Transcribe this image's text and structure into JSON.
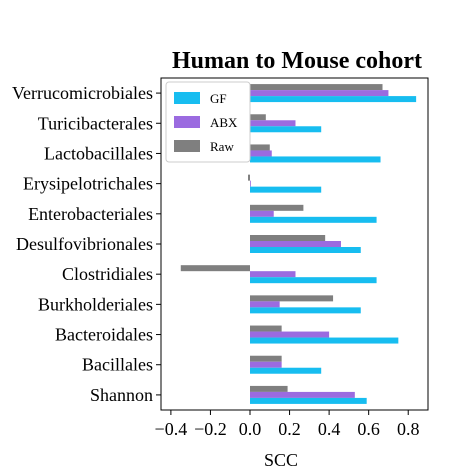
{
  "chart_data": {
    "type": "bar",
    "orientation": "horizontal",
    "title": "Human to Mouse cohort",
    "xlabel": "SCC",
    "ylabel": "",
    "xlim": [
      -0.45,
      0.9
    ],
    "xticks": [
      -0.4,
      -0.2,
      0.0,
      0.2,
      0.4,
      0.6,
      0.8
    ],
    "xtick_labels": [
      "−0.4",
      "−0.2",
      "0.0",
      "0.2",
      "0.4",
      "0.6",
      "0.8"
    ],
    "grid": false,
    "legend_position": "top-left",
    "categories": [
      "Verrucomicrobiales",
      "Turicibacterales",
      "Lactobacillales",
      "Erysipelotrichales",
      "Enterobacteriales",
      "Desulfovibrionales",
      "Clostridiales",
      "Burkholderiales",
      "Bacteroidales",
      "Bacillales",
      "Shannon"
    ],
    "series": [
      {
        "name": "Raw",
        "color": "#7f7f7f",
        "values": [
          0.67,
          0.08,
          0.1,
          -0.01,
          0.27,
          0.38,
          -0.35,
          0.42,
          0.16,
          0.16,
          0.19
        ]
      },
      {
        "name": "ABX",
        "color": "#9b6be0",
        "values": [
          0.7,
          0.23,
          0.11,
          0.0,
          0.12,
          0.46,
          0.23,
          0.15,
          0.4,
          0.16,
          0.53
        ]
      },
      {
        "name": "GF",
        "color": "#17bdf0",
        "values": [
          0.84,
          0.36,
          0.66,
          0.36,
          0.64,
          0.56,
          0.64,
          0.56,
          0.75,
          0.36,
          0.59
        ]
      }
    ],
    "legend_order": [
      "GF",
      "ABX",
      "Raw"
    ]
  }
}
